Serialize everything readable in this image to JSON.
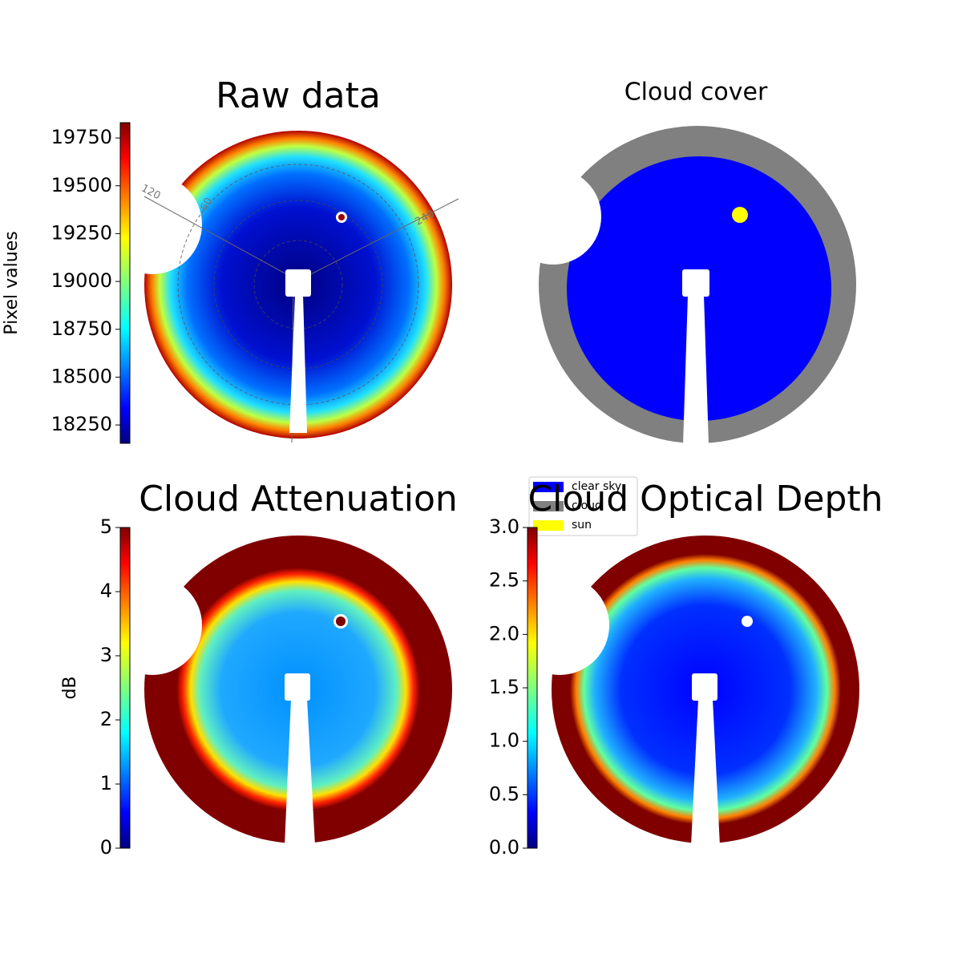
{
  "chart_data": [
    {
      "type": "image",
      "title": "Raw data",
      "ylabel": "Pixel values",
      "ylim": [
        18154,
        19830
      ],
      "yticks": [
        18250,
        18500,
        18750,
        19000,
        19250,
        19500,
        19750
      ],
      "colormap": "jet",
      "annotations": [
        "120",
        "60",
        "240"
      ]
    },
    {
      "type": "image",
      "title": "Cloud cover",
      "legend": [
        {
          "name": "clear sky",
          "color": "#0000ff"
        },
        {
          "name": "cloud",
          "color": "#808080"
        },
        {
          "name": "sun",
          "color": "#ffff00"
        }
      ]
    },
    {
      "type": "image",
      "title": "Cloud Attenuation",
      "ylabel": "dB",
      "ylim": [
        0,
        5
      ],
      "yticks": [
        0,
        1,
        2,
        3,
        4,
        5
      ],
      "colormap": "jet"
    },
    {
      "type": "image",
      "title": "Cloud Optical Depth",
      "ylim": [
        0,
        3
      ],
      "yticks": [
        {
          "value": 0,
          "label": "0.0"
        },
        {
          "value": 0.5,
          "label": "0.5"
        },
        {
          "value": 1,
          "label": "1.0"
        },
        {
          "value": 1.5,
          "label": "1.5"
        },
        {
          "value": 2,
          "label": "2.0"
        },
        {
          "value": 2.5,
          "label": "2.5"
        },
        {
          "value": 3,
          "label": "3.0"
        }
      ],
      "colormap": "jet"
    }
  ]
}
